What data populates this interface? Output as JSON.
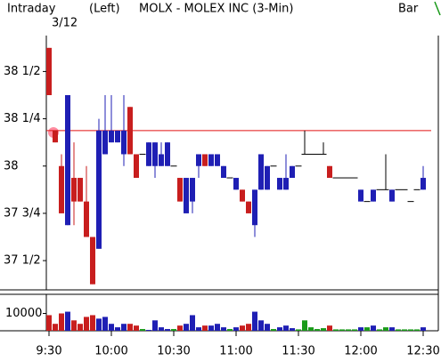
{
  "header": {
    "left": "Intraday",
    "mode": "(Left)",
    "symbol": "MOLX - MOLEX INC  (3-Min)",
    "style": "Bar",
    "date": "3/12"
  },
  "chart_data": [
    {
      "type": "candlestick",
      "categories": [
        "9:30",
        null,
        null,
        null,
        null,
        null,
        null,
        null,
        null,
        null,
        "10:00",
        null,
        null,
        null,
        null,
        null,
        null,
        null,
        null,
        null,
        "10:30",
        null,
        null,
        null,
        null,
        null,
        null,
        null,
        null,
        null,
        "11:00",
        null,
        null,
        null,
        null,
        null,
        null,
        null,
        null,
        null,
        "11:30",
        null,
        null,
        null,
        null,
        null,
        null,
        null,
        null,
        null,
        "12:00",
        null,
        null,
        null,
        null,
        null,
        null,
        null,
        null,
        null,
        "12:30"
      ],
      "open": [
        38.625,
        38.1875,
        38,
        37.6875,
        37.9375,
        37.9375,
        37.8125,
        37.625,
        37.5625,
        38.0625,
        38.125,
        38.125,
        38.0625,
        38.3125,
        38.0625,
        38.0625,
        38,
        38,
        38,
        38,
        38,
        37.9375,
        37.75,
        37.8125,
        38,
        38.0625,
        38,
        38,
        37.9375,
        37.9375,
        37.875,
        37.875,
        37.8125,
        37.6875,
        37.875,
        37.875,
        38,
        37.875,
        37.875,
        37.9375,
        38,
        38.0625,
        38.0625,
        38.0625,
        38.0625,
        38,
        37.9375,
        37.9375,
        37.9375,
        37.9375,
        37.8125,
        37.8125,
        37.8125,
        37.875,
        37.875,
        37.8125,
        37.875,
        37.875,
        37.8125,
        37.875,
        37.875
      ],
      "high": [
        38.625,
        38.1875,
        38.0625,
        38.375,
        38.125,
        37.9375,
        38,
        37.625,
        38.25,
        38.375,
        38.375,
        38.1875,
        38.375,
        38.3125,
        38.0625,
        38.0625,
        38.125,
        38.125,
        38.125,
        38.125,
        38,
        37.9375,
        37.9375,
        37.9375,
        38.0625,
        38.0625,
        38.0625,
        38.0625,
        38,
        37.9375,
        37.9375,
        37.875,
        37.8125,
        37.875,
        38.0625,
        38,
        38,
        37.9375,
        38.0625,
        38,
        38,
        38.1875,
        38.0625,
        38.0625,
        38.125,
        38,
        37.9375,
        37.9375,
        37.9375,
        37.9375,
        37.875,
        37.8125,
        37.875,
        37.875,
        38.0625,
        37.875,
        37.875,
        37.875,
        37.8125,
        37.875,
        38
      ],
      "low": [
        38.375,
        38.125,
        37.75,
        37.6875,
        37.6875,
        37.8125,
        37.625,
        37.375,
        37.5625,
        38.0625,
        38.125,
        38.125,
        38,
        38.0625,
        37.9375,
        38.0625,
        38,
        37.9375,
        38,
        38,
        38,
        37.8125,
        37.75,
        37.75,
        37.9375,
        38,
        38,
        38,
        37.9375,
        37.9375,
        37.875,
        37.8125,
        37.75,
        37.625,
        37.875,
        37.875,
        38,
        37.875,
        37.875,
        37.9375,
        38,
        38.0625,
        38.0625,
        38.0625,
        38.0625,
        37.9375,
        37.9375,
        37.9375,
        37.9375,
        37.9375,
        37.8125,
        37.8125,
        37.8125,
        37.875,
        37.875,
        37.8125,
        37.875,
        37.875,
        37.8125,
        37.875,
        37.875
      ],
      "close": [
        38.375,
        38.125,
        37.75,
        38.375,
        37.8125,
        37.8125,
        37.625,
        37.375,
        38.1875,
        38.1875,
        38.1875,
        38.1875,
        38.1875,
        38.0625,
        37.9375,
        38.0625,
        38.125,
        38.125,
        38.0625,
        38.125,
        38,
        37.8125,
        37.9375,
        37.9375,
        38.0625,
        38,
        38.0625,
        38.0625,
        38,
        37.9375,
        37.9375,
        37.8125,
        37.75,
        37.875,
        38.0625,
        38,
        38,
        37.9375,
        37.9375,
        38,
        38,
        38.0625,
        38.0625,
        38.0625,
        38.0625,
        37.9375,
        37.9375,
        37.9375,
        37.9375,
        37.9375,
        37.875,
        37.8125,
        37.875,
        37.875,
        37.875,
        37.875,
        37.875,
        37.875,
        37.8125,
        37.875,
        37.9375
      ],
      "up_color": "#1f1fb4",
      "down_color": "#c81e1e",
      "flat_color": "#000000",
      "ref_line": 38.1875,
      "ref_color": "#e01010",
      "ylim": [
        37.35,
        38.69
      ],
      "yticks": [
        {
          "value": 37.5,
          "label": "37 1/2"
        },
        {
          "value": 37.75,
          "label": "37 3/4"
        },
        38,
        {
          "value": 38.25,
          "label": "38 1/4"
        },
        {
          "value": 38.5,
          "label": "38 1/2"
        }
      ]
    },
    {
      "type": "volume",
      "values": [
        9000,
        4000,
        10000,
        11000,
        6000,
        4000,
        8000,
        9000,
        7000,
        8000,
        4000,
        2000,
        4000,
        4000,
        3000,
        1000,
        500,
        6000,
        2000,
        1000,
        1000,
        3000,
        4000,
        9000,
        2000,
        3000,
        3000,
        4000,
        2000,
        1000,
        2000,
        3000,
        4000,
        11000,
        6000,
        4000,
        1000,
        2000,
        3000,
        1500,
        800,
        6000,
        2000,
        1000,
        1500,
        3000,
        800,
        800,
        800,
        800,
        2000,
        2000,
        3000,
        800,
        2000,
        2000,
        800,
        800,
        800,
        800,
        2000
      ],
      "flat_color": "#1a9a1a",
      "ylim": [
        0,
        20000
      ],
      "yticks": [
        10000
      ]
    }
  ]
}
